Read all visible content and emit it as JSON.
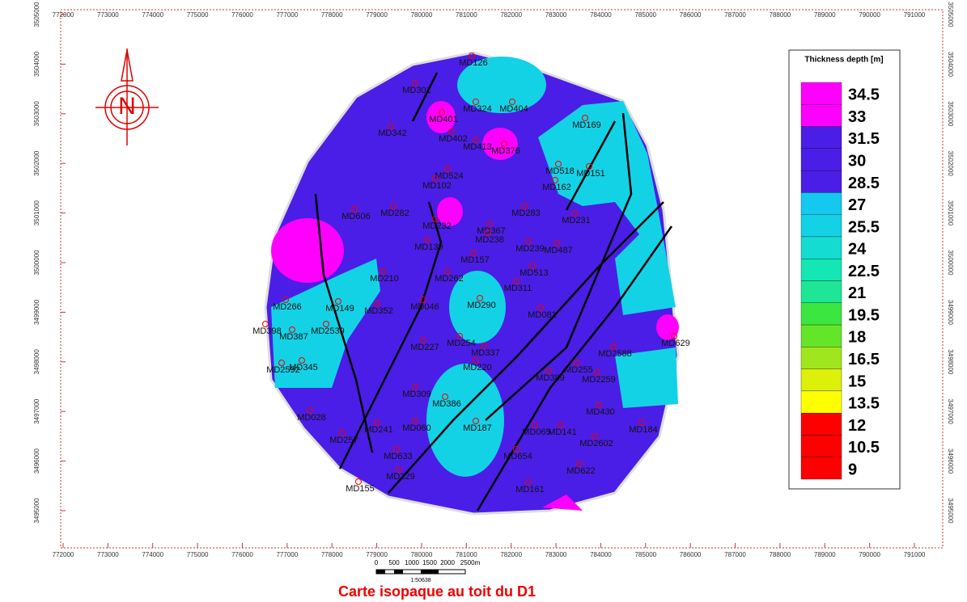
{
  "map": {
    "title": "Carte isopaque au toit du D1",
    "xticks": [
      772000,
      773000,
      774000,
      775000,
      776000,
      777000,
      778000,
      779000,
      780000,
      781000,
      782000,
      783000,
      784000,
      785000,
      786000,
      787000,
      788000,
      789000,
      790000,
      791000
    ],
    "yticks": [
      3505000,
      3504000,
      3503000,
      3502000,
      3501000,
      3500000,
      3499000,
      3498000,
      3497000,
      3496000,
      3495000
    ],
    "legend": {
      "title": "Thickness depth [m]",
      "levels": [
        {
          "value": 34.5,
          "color": "#ff00ff"
        },
        {
          "value": 33,
          "color": "#ff00ff"
        },
        {
          "value": 31.5,
          "color": "#4a1ee6"
        },
        {
          "value": 30,
          "color": "#4a1ee6"
        },
        {
          "value": 28.5,
          "color": "#4a1ee6"
        },
        {
          "value": 27,
          "color": "#14c8f0"
        },
        {
          "value": 25.5,
          "color": "#14d2e6"
        },
        {
          "value": 24,
          "color": "#14dcd2"
        },
        {
          "value": 22.5,
          "color": "#14e6b4"
        },
        {
          "value": 21,
          "color": "#1ee696"
        },
        {
          "value": 19.5,
          "color": "#3ce640"
        },
        {
          "value": 18,
          "color": "#64e628"
        },
        {
          "value": 16.5,
          "color": "#a0e61e"
        },
        {
          "value": 15,
          "color": "#dcf00a"
        },
        {
          "value": 13.5,
          "color": "#ffff00"
        },
        {
          "value": 12,
          "color": "#ff0000"
        },
        {
          "value": 10.5,
          "color": "#ff0000"
        },
        {
          "value": 9,
          "color": "#ff0000"
        }
      ]
    },
    "scale_bar": {
      "labels": [
        "0",
        "500",
        "1000",
        "1500",
        "2000",
        "2500m"
      ],
      "ratio": "1:50638"
    },
    "wells": [
      "MD126",
      "MD301",
      "MD324",
      "MD404",
      "MD169",
      "MD401",
      "MD342",
      "MD402",
      "MD413",
      "MD376",
      "MD518",
      "MD151",
      "MD524",
      "MD162",
      "MD102",
      "MD283",
      "MD231",
      "MD606",
      "MD282",
      "MD367",
      "MD232",
      "MD139",
      "MD238",
      "MD239",
      "MD487",
      "MD157",
      "MD513",
      "MD262",
      "MD210",
      "MD311",
      "MD149",
      "MD352",
      "MD046",
      "MD290",
      "MD081",
      "MD266",
      "MD398",
      "MD387",
      "MD2539",
      "MD629",
      "MD227",
      "MD254",
      "MD337",
      "MD2588",
      "MD345",
      "MD2592",
      "MD220",
      "MD389",
      "MD255",
      "MD2259",
      "MD386",
      "MD309",
      "MD028",
      "MD430",
      "MD241",
      "MD060",
      "MD187",
      "MD065",
      "MD141",
      "MD184",
      "MD257",
      "MD2602",
      "MD633",
      "MD654",
      "MD229",
      "MD622",
      "MD155",
      "MD161"
    ]
  }
}
